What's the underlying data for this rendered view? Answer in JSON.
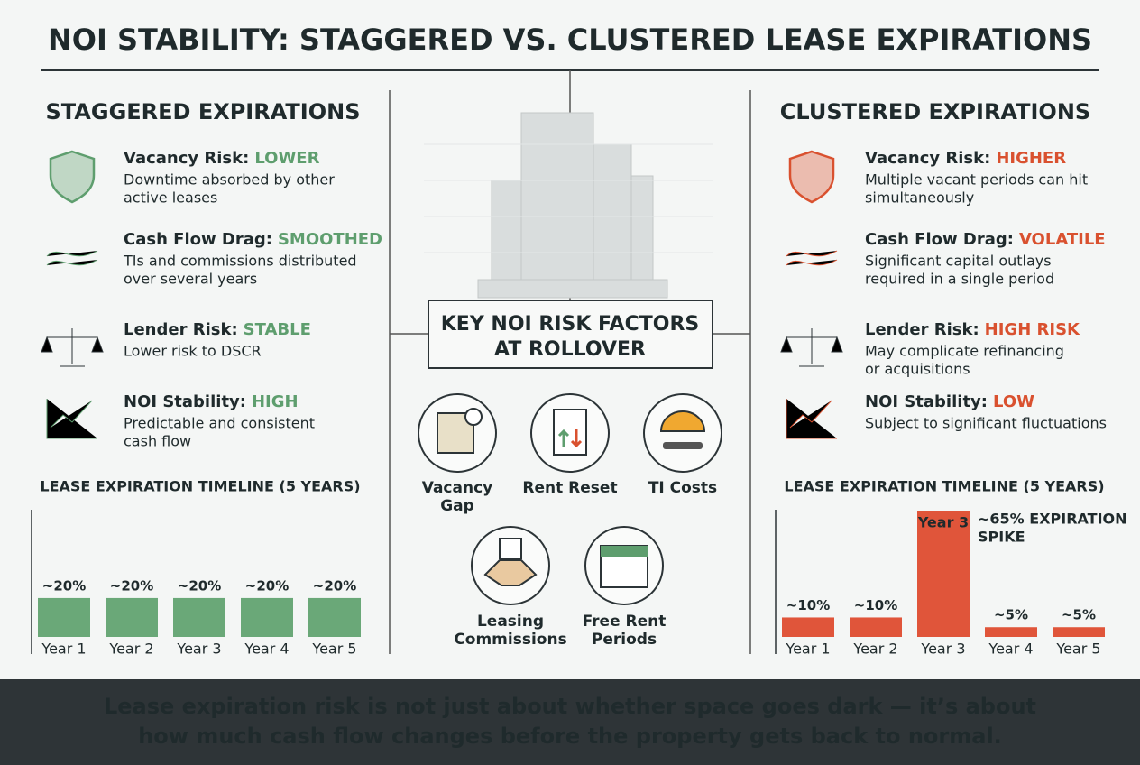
{
  "title": "NOI STABILITY: STAGGERED VS. CLUSTERED LEASE EXPIRATIONS",
  "left": {
    "heading": "STAGGERED EXPIRATIONS",
    "color": "#5e9e6e",
    "items": [
      {
        "label": "Vacancy Risk:",
        "value": "LOWER",
        "desc": [
          "Downtime absorbed by other",
          "active leases"
        ]
      },
      {
        "label": "Cash Flow Drag:",
        "value": "SMOOTHED",
        "desc": [
          "TIs and commissions distributed",
          "over several years"
        ]
      },
      {
        "label": "Lender Risk:",
        "value": "STABLE",
        "desc": [
          "Lower risk to DSCR"
        ]
      },
      {
        "label": "NOI Stability:",
        "value": "HIGH",
        "desc": [
          "Predictable and consistent",
          "cash flow"
        ]
      }
    ],
    "timeline": {
      "type": "bar",
      "title": "LEASE EXPIRATION TIMELINE (5 YEARS)",
      "categories": [
        "Year 1",
        "Year 2",
        "Year 3",
        "Year 4",
        "Year 5"
      ],
      "values": [
        20,
        20,
        20,
        20,
        20
      ],
      "value_labels": [
        "~20%",
        "~20%",
        "~20%",
        "~20%",
        "~20%"
      ],
      "color": "#6aa878",
      "ylim": [
        0,
        65
      ]
    }
  },
  "center": {
    "title": [
      "KEY NOI RISK FACTORS",
      "AT ROLLOVER"
    ],
    "factors": [
      [
        "Vacancy",
        "Gap"
      ],
      [
        "Rent Reset"
      ],
      [
        "TI Costs"
      ],
      [
        "Leasing",
        "Commissions"
      ],
      [
        "Free Rent",
        "Periods"
      ]
    ]
  },
  "right": {
    "heading": "CLUSTERED EXPIRATIONS",
    "color": "#d9512f",
    "items": [
      {
        "label": "Vacancy Risk:",
        "value": "HIGHER",
        "desc": [
          "Multiple vacant periods can hit",
          "simultaneously"
        ]
      },
      {
        "label": "Cash Flow Drag:",
        "value": "VOLATILE",
        "desc": [
          "Significant capital outlays",
          "required in a single period"
        ]
      },
      {
        "label": "Lender Risk:",
        "value": "HIGH RISK",
        "desc": [
          "May complicate refinancing",
          "or acquisitions"
        ]
      },
      {
        "label": "NOI Stability:",
        "value": "LOW",
        "desc": [
          "Subject to significant fluctuations"
        ]
      }
    ],
    "timeline": {
      "type": "bar",
      "title": "LEASE EXPIRATION TIMELINE (5 YEARS)",
      "categories": [
        "Year 1",
        "Year 2",
        "Year 3",
        "Year 4",
        "Year 5"
      ],
      "values": [
        10,
        10,
        65,
        5,
        5
      ],
      "value_labels": [
        "~10%",
        "~10%",
        null,
        "~5%",
        "~5%"
      ],
      "bar_label": "Year 3",
      "annotation": [
        "~65% EXPIRATION",
        "SPIKE"
      ],
      "color": "#e0553a",
      "ylim": [
        0,
        65
      ]
    }
  },
  "footer": [
    "Lease expiration risk is not just about whether space goes dark — it’s about",
    "how much cash flow changes before the property gets back to normal."
  ]
}
